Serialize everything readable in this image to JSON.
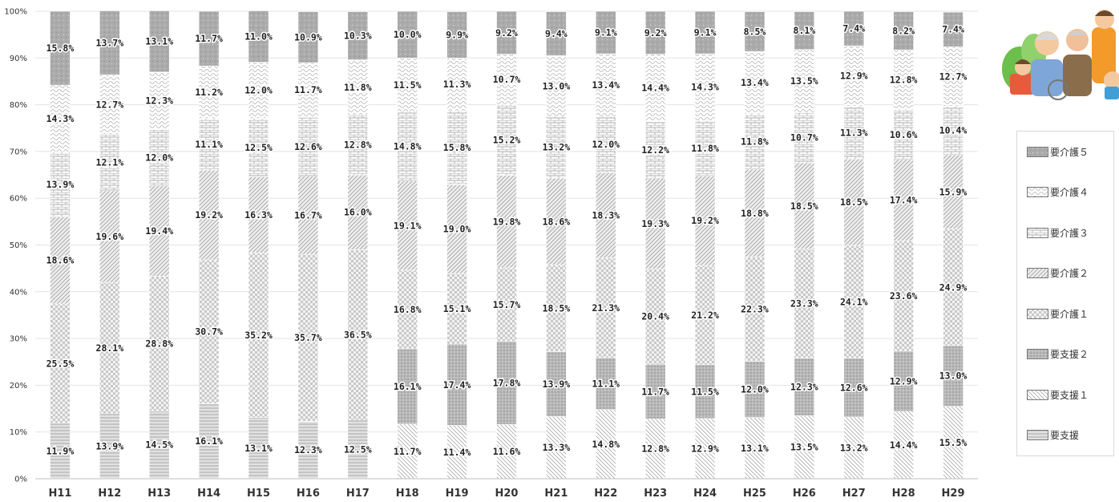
{
  "chart_data": {
    "type": "bar",
    "stacked": true,
    "percent": true,
    "title": "",
    "xlabel": "",
    "ylabel": "",
    "ylim": [
      0,
      100
    ],
    "yticks": [
      "0%",
      "10%",
      "20%",
      "30%",
      "40%",
      "50%",
      "60%",
      "70%",
      "80%",
      "90%",
      "100%"
    ],
    "grid": true,
    "legend_position": "right",
    "categories": [
      "H11",
      "H12",
      "H13",
      "H14",
      "H15",
      "H16",
      "H17",
      "H18",
      "H19",
      "H20",
      "H21",
      "H22",
      "H23",
      "H24",
      "H25",
      "H26",
      "H27",
      "H28",
      "H29"
    ],
    "series": [
      {
        "name": "要支援",
        "pattern": "hlines",
        "values": [
          11.9,
          13.9,
          14.5,
          16.1,
          13.1,
          12.3,
          12.5,
          null,
          null,
          null,
          null,
          null,
          null,
          null,
          null,
          null,
          null,
          null,
          null
        ],
        "labels": [
          "11.9%",
          "13.9%",
          "14.5%",
          "16.1%",
          "13.1%",
          "12.3%",
          "12.5%",
          "",
          "",
          "",
          "",
          "",
          "",
          "",
          "",
          "",
          "",
          "",
          ""
        ]
      },
      {
        "name": "要支援１",
        "pattern": "diag",
        "values": [
          null,
          null,
          null,
          null,
          null,
          null,
          null,
          11.7,
          11.4,
          11.6,
          13.3,
          14.8,
          12.8,
          12.9,
          13.1,
          13.5,
          13.2,
          14.4,
          15.5
        ],
        "labels": [
          "",
          "",
          "",
          "",
          "",
          "",
          "",
          "11.7%",
          "11.4%",
          "11.6%",
          "13.3%",
          "14.8%",
          "12.8%",
          "12.9%",
          "13.1%",
          "13.5%",
          "13.2%",
          "14.4%",
          "15.5%"
        ]
      },
      {
        "name": "要支援２",
        "pattern": "dots",
        "values": [
          null,
          null,
          null,
          null,
          null,
          null,
          null,
          16.1,
          17.4,
          17.8,
          13.9,
          11.1,
          11.7,
          11.5,
          12.0,
          12.3,
          12.6,
          12.9,
          13.0
        ],
        "labels": [
          "",
          "",
          "",
          "",
          "",
          "",
          "",
          "16.1%",
          "17.4%",
          "17.8%",
          "13.9%",
          "11.1%",
          "11.7%",
          "11.5%",
          "12.0%",
          "12.3%",
          "12.6%",
          "12.9%",
          "13.0%"
        ]
      },
      {
        "name": "要介護１",
        "pattern": "checker",
        "values": [
          25.5,
          28.1,
          28.8,
          30.7,
          35.2,
          35.7,
          36.5,
          16.8,
          15.1,
          15.7,
          18.5,
          21.3,
          20.4,
          21.2,
          22.3,
          23.3,
          24.1,
          23.6,
          24.9
        ],
        "labels": [
          "25.5%",
          "28.1%",
          "28.8%",
          "30.7%",
          "35.2%",
          "35.7%",
          "36.5%",
          "16.8%",
          "15.1%",
          "15.7%",
          "18.5%",
          "21.3%",
          "20.4%",
          "21.2%",
          "22.3%",
          "23.3%",
          "24.1%",
          "23.6%",
          "24.9%"
        ]
      },
      {
        "name": "要介護２",
        "pattern": "slash",
        "values": [
          18.6,
          19.6,
          19.4,
          19.2,
          16.3,
          16.7,
          16.0,
          19.1,
          19.0,
          19.8,
          18.6,
          18.3,
          19.3,
          19.2,
          18.8,
          18.5,
          18.5,
          17.4,
          15.9
        ],
        "labels": [
          "18.6%",
          "19.6%",
          "19.4%",
          "19.2%",
          "16.3%",
          "16.7%",
          "16.0%",
          "19.1%",
          "19.0%",
          "19.8%",
          "18.6%",
          "18.3%",
          "19.3%",
          "19.2%",
          "18.8%",
          "18.5%",
          "18.5%",
          "17.4%",
          "15.9%"
        ]
      },
      {
        "name": "要介護３",
        "pattern": "brick",
        "values": [
          13.9,
          12.1,
          12.0,
          11.1,
          12.5,
          12.6,
          12.8,
          14.8,
          15.8,
          15.2,
          13.2,
          12.0,
          12.2,
          11.8,
          11.8,
          10.7,
          11.3,
          10.6,
          10.4
        ],
        "labels": [
          "13.9%",
          "12.1%",
          "12.0%",
          "11.1%",
          "12.5%",
          "12.6%",
          "12.8%",
          "14.8%",
          "15.8%",
          "15.2%",
          "13.2%",
          "12.0%",
          "12.2%",
          "11.8%",
          "11.8%",
          "10.7%",
          "11.3%",
          "10.6%",
          "10.4%"
        ]
      },
      {
        "name": "要介護４",
        "pattern": "wave",
        "values": [
          14.3,
          12.7,
          12.3,
          11.2,
          12.0,
          11.7,
          11.8,
          11.5,
          11.3,
          10.7,
          13.0,
          13.4,
          14.4,
          14.3,
          13.4,
          13.5,
          12.9,
          12.8,
          12.7
        ],
        "labels": [
          "14.3%",
          "12.7%",
          "12.3%",
          "11.2%",
          "12.0%",
          "11.7%",
          "11.8%",
          "11.5%",
          "11.3%",
          "10.7%",
          "13.0%",
          "13.4%",
          "14.4%",
          "14.3%",
          "13.4%",
          "13.5%",
          "12.9%",
          "12.8%",
          "12.7%"
        ]
      },
      {
        "name": "要介護５",
        "pattern": "darkdots",
        "values": [
          15.8,
          13.7,
          13.1,
          11.7,
          11.0,
          10.9,
          10.3,
          10.0,
          9.9,
          9.2,
          9.4,
          9.1,
          9.2,
          9.1,
          8.5,
          8.1,
          7.4,
          8.2,
          7.4
        ],
        "labels": [
          "15.8%",
          "13.7%",
          "13.1%",
          "11.7%",
          "11.0%",
          "10.9%",
          "10.3%",
          "10.0%",
          "9.9%",
          "9.2%",
          "9.4%",
          "9.1%",
          "9.2%",
          "9.1%",
          "8.5%",
          "8.1%",
          "7.4%",
          "8.2%",
          "7.4%"
        ]
      }
    ]
  }
}
